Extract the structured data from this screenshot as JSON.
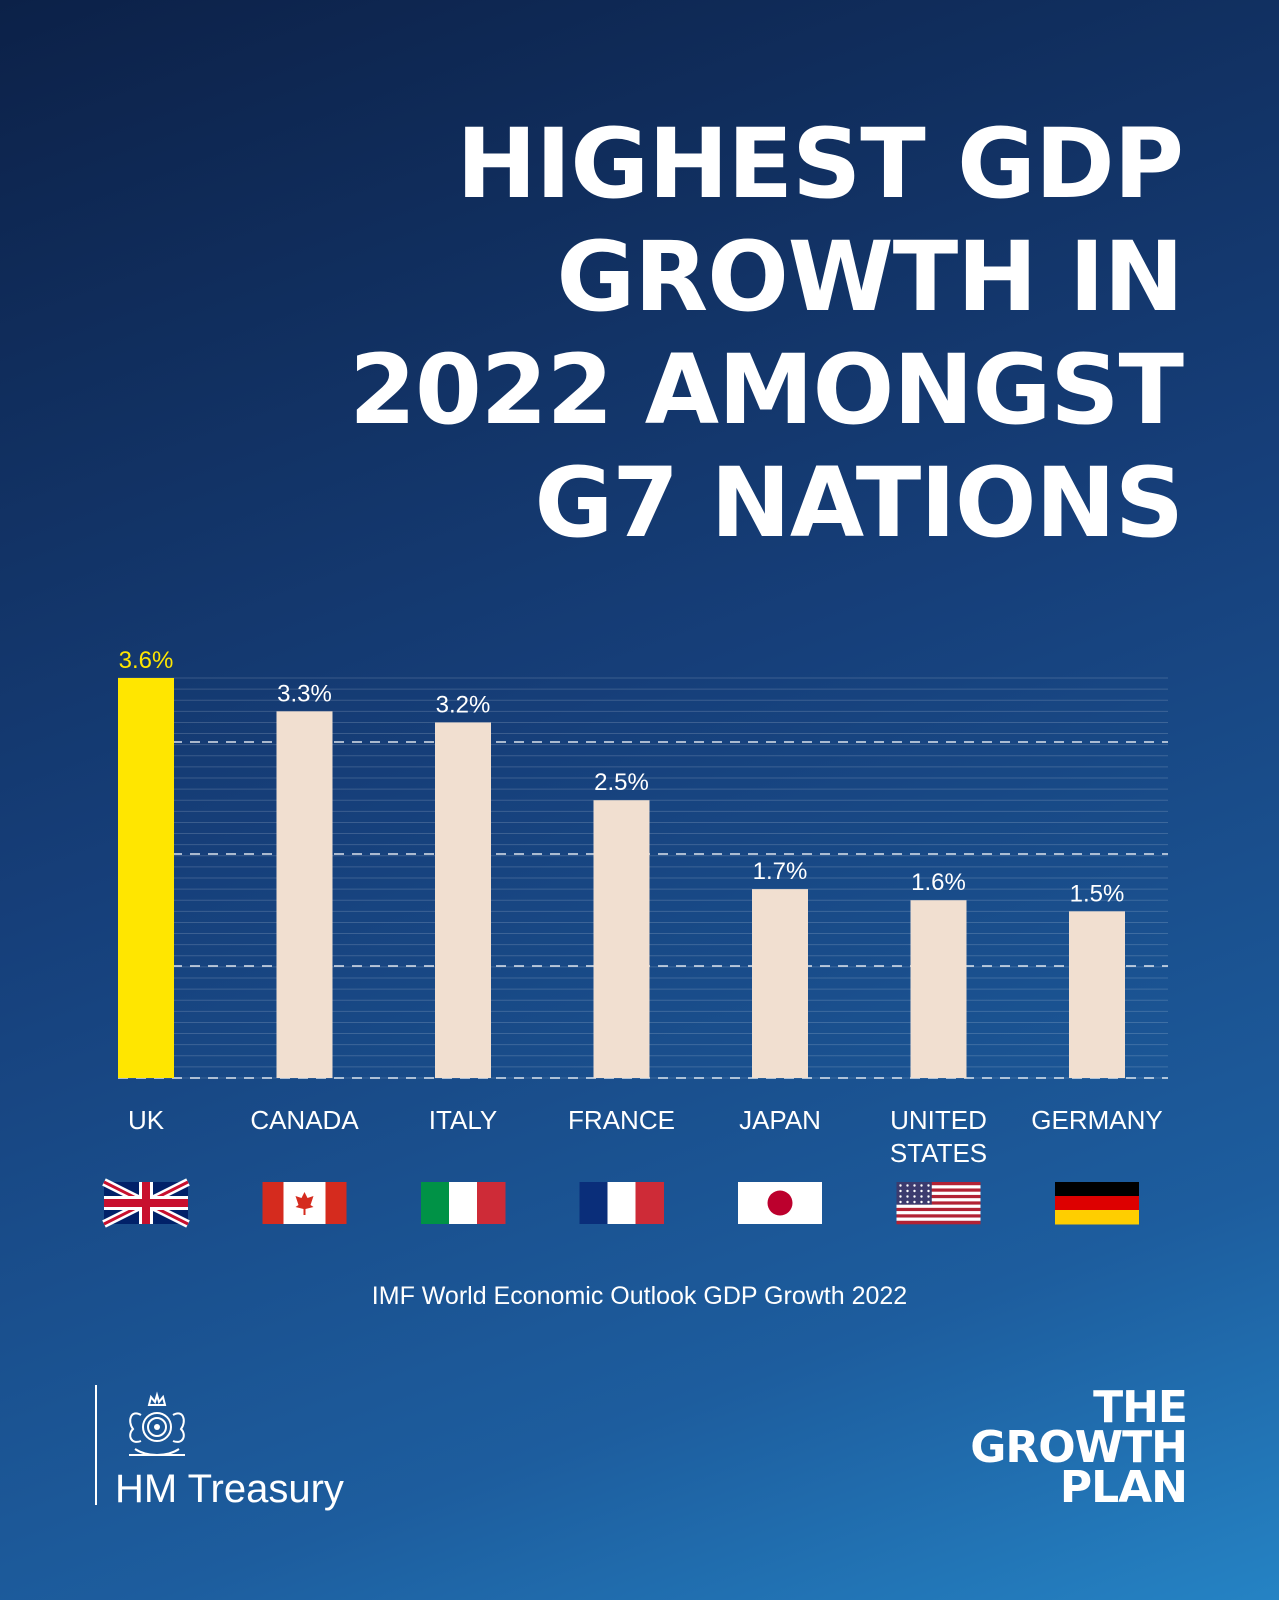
{
  "headline": {
    "lines": [
      "HIGHEST GDP",
      "GROWTH IN",
      "2022 AMONGST",
      "G7 NATIONS"
    ]
  },
  "chart_data": {
    "type": "bar",
    "title": "",
    "xlabel": "",
    "ylabel": "",
    "ylim": [
      0,
      3.6
    ],
    "grid": true,
    "categories": [
      {
        "lines": [
          "UK"
        ]
      },
      {
        "lines": [
          "CANADA"
        ]
      },
      {
        "lines": [
          "ITALY"
        ]
      },
      {
        "lines": [
          "FRANCE"
        ]
      },
      {
        "lines": [
          "JAPAN"
        ]
      },
      {
        "lines": [
          "UNITED",
          "STATES"
        ]
      },
      {
        "lines": [
          "GERMANY"
        ]
      }
    ],
    "values": [
      3.6,
      3.3,
      3.2,
      2.5,
      1.7,
      1.6,
      1.5
    ],
    "value_labels": [
      "3.6%",
      "3.3%",
      "3.2%",
      "2.5%",
      "1.7%",
      "1.6%",
      "1.5%"
    ],
    "flags": [
      "uk-flag-icon",
      "canada-flag-icon",
      "italy-flag-icon",
      "france-flag-icon",
      "japan-flag-icon",
      "united-states-flag-icon",
      "germany-flag-icon"
    ],
    "colors": {
      "highlight_bar": "#ffe600",
      "bar": "#f1dfd0",
      "highlight_label": "#ffe600",
      "label": "#ffffff"
    }
  },
  "source": "IMF World Economic Outlook GDP Growth 2022",
  "brand": {
    "logo": "royal-crest-icon",
    "name": "HM Treasury"
  },
  "plan": {
    "lines": [
      "THE",
      "GROWTH",
      "PLAN"
    ]
  }
}
